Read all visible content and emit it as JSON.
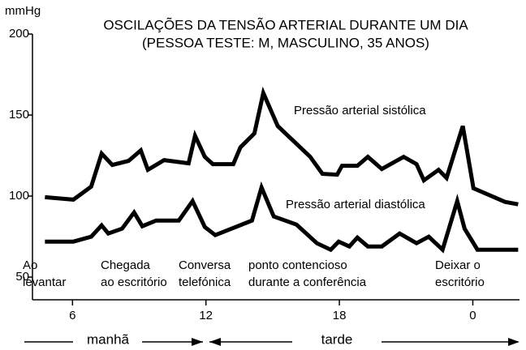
{
  "chart_data": {
    "type": "line",
    "title": [
      "OSCILAÇÕES DA TENSÃO ARTERIAL DURANTE UM DIA",
      "(PESSOA TESTE: M, MASCULINO, 35 ANOS)"
    ],
    "y_label": "mmHg",
    "xlim": [
      4.2,
      26.1
    ],
    "xticks": [
      6,
      12,
      18,
      {
        "value": 24,
        "label": "0"
      }
    ],
    "ylim": [
      36,
      200
    ],
    "yticks": [
      50,
      100,
      150,
      200
    ],
    "series": [
      {
        "name": "Pressão arterial sistólica",
        "color": "#000000",
        "x": [
          4.76,
          6.04,
          6.84,
          7.31,
          7.79,
          8.52,
          9.07,
          9.39,
          10.12,
          11.22,
          11.51,
          11.95,
          12.31,
          13.23,
          13.55,
          14.18,
          14.58,
          15.23,
          16.69,
          17.24,
          17.9,
          18.12,
          18.81,
          19.28,
          19.91,
          20.89,
          21.47,
          21.8,
          22.46,
          22.82,
          23.55,
          24.03,
          25.45,
          26.04
        ],
        "values": [
          99.3,
          97.8,
          105.8,
          126.2,
          119.2,
          121.7,
          128.2,
          116.2,
          122.2,
          120.2,
          137.2,
          124.2,
          119.7,
          119.7,
          130.1,
          138.7,
          163.6,
          143.2,
          124.2,
          113.7,
          113.2,
          118.7,
          118.7,
          124.2,
          116.7,
          124.2,
          119.7,
          109.7,
          116.2,
          111.2,
          143.2,
          104.8,
          96.4,
          94.9
        ]
      },
      {
        "name": "Pressão arterial diastólica",
        "color": "#000000",
        "x": [
          4.76,
          6.04,
          6.84,
          7.31,
          7.61,
          8.23,
          8.77,
          9.14,
          9.76,
          10.78,
          11.4,
          11.95,
          12.42,
          14.07,
          14.5,
          15.05,
          16.07,
          16.99,
          17.61,
          17.97,
          18.45,
          18.81,
          19.28,
          19.91,
          20.71,
          21.47,
          22.02,
          22.64,
          23.3,
          23.63,
          24.21,
          26.04
        ],
        "values": [
          71.9,
          71.9,
          74.9,
          81.9,
          76.9,
          79.9,
          89.9,
          81.4,
          84.9,
          84.9,
          96.9,
          80.9,
          75.9,
          84.9,
          105.3,
          87.4,
          82.4,
          70.9,
          66.9,
          71.9,
          68.9,
          74.4,
          68.9,
          68.9,
          76.9,
          70.9,
          74.9,
          66.9,
          96.9,
          79.9,
          66.9,
          66.9
        ]
      }
    ],
    "annotations": [
      [
        "Ao",
        "levantar"
      ],
      [
        "Chegada",
        "ao escritório"
      ],
      [
        "Conversa",
        "telefónica"
      ],
      [
        "ponto contencioso",
        "durante a conferência"
      ],
      [
        "Deixar o",
        "escritório"
      ]
    ],
    "periods": [
      "manhã",
      "tarde"
    ]
  }
}
